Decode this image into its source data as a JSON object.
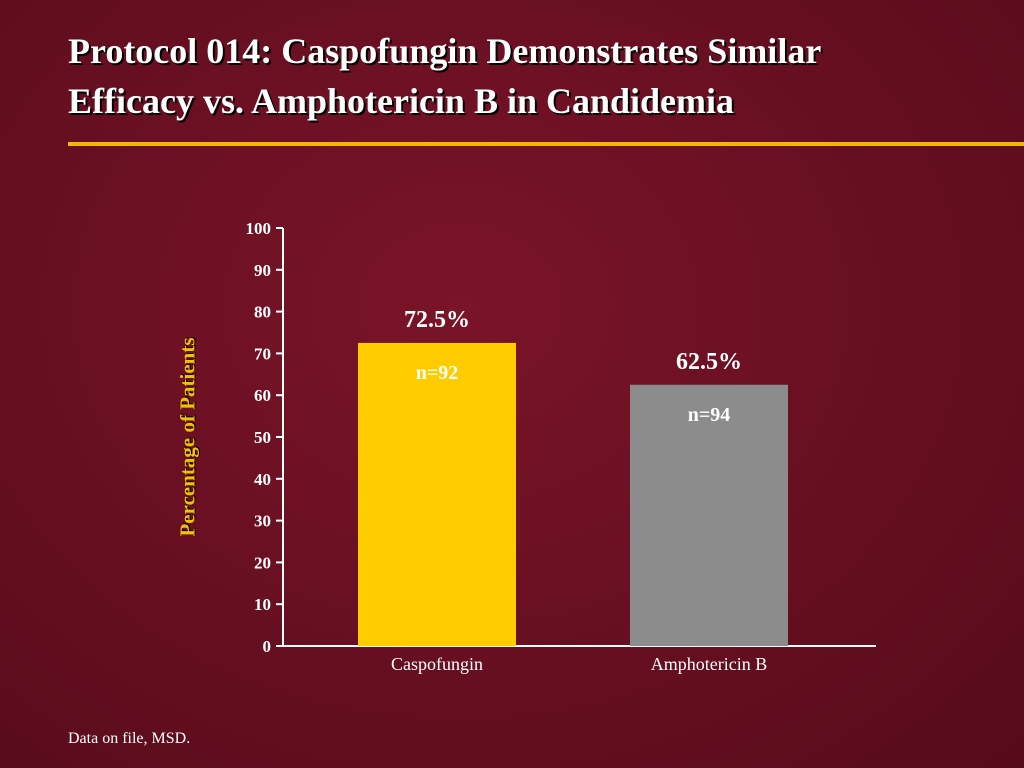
{
  "slide": {
    "title_line1": "Protocol 014: Caspofungin Demonstrates Similar",
    "title_line2": "Efficacy vs. Amphotericin B in Candidemia",
    "footnote": "Data on file, MSD."
  },
  "colors": {
    "background": "#6a1022",
    "accent_rule": "#f2b800",
    "axis_label": "#f2c200"
  },
  "chart_data": {
    "type": "bar",
    "categories": [
      "Caspofungin",
      "Amphotericin B"
    ],
    "values": [
      72.5,
      62.5
    ],
    "value_labels": [
      "72.5%",
      "62.5%"
    ],
    "n_labels": [
      "n=92",
      "n=94"
    ],
    "bar_colors": [
      "#ffcc00",
      "#8c8c8c"
    ],
    "ylabel": "Percentage of Patients",
    "xlabel": "",
    "ylim": [
      0,
      100
    ],
    "yticks": [
      0,
      10,
      20,
      30,
      40,
      50,
      60,
      70,
      80,
      90,
      100
    ],
    "grid": false,
    "legend": "none"
  }
}
